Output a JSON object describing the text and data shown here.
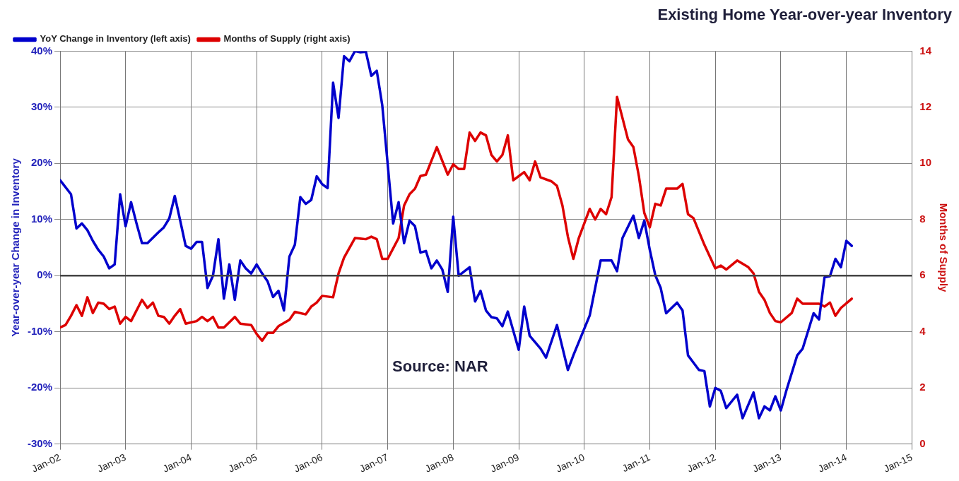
{
  "chart_data": {
    "type": "line",
    "title": "Existing Home Year-over-year Inventory",
    "ylabel": "Year-over-year Change in Inventory",
    "y2label": "Months of Supply",
    "annotations": [
      "Source: NAR"
    ],
    "legend": "top left",
    "grid": true,
    "marker": "none",
    "line_style": "solid",
    "xlim": [
      "2002-01",
      "2015-01"
    ],
    "xticks": [
      {
        "value": "2002-01",
        "label": "Jan-02"
      },
      {
        "value": "2003-01",
        "label": "Jan-03"
      },
      {
        "value": "2004-01",
        "label": "Jan-04"
      },
      {
        "value": "2005-01",
        "label": "Jan-05"
      },
      {
        "value": "2006-01",
        "label": "Jan-06"
      },
      {
        "value": "2007-01",
        "label": "Jan-07"
      },
      {
        "value": "2008-01",
        "label": "Jan-08"
      },
      {
        "value": "2009-01",
        "label": "Jan-09"
      },
      {
        "value": "2010-01",
        "label": "Jan-10"
      },
      {
        "value": "2011-01",
        "label": "Jan-11"
      },
      {
        "value": "2012-01",
        "label": "Jan-12"
      },
      {
        "value": "2013-01",
        "label": "Jan-13"
      },
      {
        "value": "2014-01",
        "label": "Jan-14"
      },
      {
        "value": "2015-01",
        "label": "Jan-15"
      }
    ],
    "ylim": [
      -30,
      40
    ],
    "yticks": [
      {
        "value": -30,
        "label": "-30%"
      },
      {
        "value": -20,
        "label": "-20%"
      },
      {
        "value": -10,
        "label": "-10%"
      },
      {
        "value": 0,
        "label": "0%"
      },
      {
        "value": 10,
        "label": "10%"
      },
      {
        "value": 20,
        "label": "20%"
      },
      {
        "value": 30,
        "label": "30%"
      },
      {
        "value": 40,
        "label": "40%"
      }
    ],
    "y2lim": [
      0,
      14
    ],
    "y2ticks": [
      0,
      2,
      4,
      6,
      8,
      10,
      12,
      14
    ],
    "ref_lines": [
      {
        "axis": "y",
        "value": 0,
        "color": "#444444"
      }
    ],
    "series": [
      {
        "name": "YoY Change in Inventory (left axis)",
        "color": "#0000cc",
        "x": [
          "2002-01",
          "2002-03",
          "2002-04",
          "2002-05",
          "2002-06",
          "2002-07",
          "2002-08",
          "2002-09",
          "2002-10",
          "2002-11",
          "2002-12",
          "2003-01",
          "2003-02",
          "2003-03",
          "2003-04",
          "2003-05",
          "2003-07",
          "2003-08",
          "2003-09",
          "2003-10",
          "2003-11",
          "2003-12",
          "2004-01",
          "2004-02",
          "2004-03",
          "2004-04",
          "2004-05",
          "2004-06",
          "2004-07",
          "2004-08",
          "2004-09",
          "2004-10",
          "2004-11",
          "2004-12",
          "2005-01",
          "2005-02",
          "2005-03",
          "2005-04",
          "2005-05",
          "2005-06",
          "2005-07",
          "2005-08",
          "2005-09",
          "2005-10",
          "2005-11",
          "2005-12",
          "2006-01",
          "2006-02",
          "2006-03",
          "2006-04",
          "2006-05",
          "2006-06",
          "2006-07",
          "2006-08",
          "2006-09",
          "2006-10",
          "2006-11",
          "2006-12",
          "2007-02",
          "2007-03",
          "2007-04",
          "2007-05",
          "2007-06",
          "2007-07",
          "2007-08",
          "2007-09",
          "2007-10",
          "2007-11",
          "2007-12",
          "2008-01",
          "2008-02",
          "2008-04",
          "2008-05",
          "2008-06",
          "2008-07",
          "2008-08",
          "2008-09",
          "2008-10",
          "2008-11",
          "2009-01",
          "2009-02",
          "2009-03",
          "2009-05",
          "2009-06",
          "2009-08",
          "2009-10",
          "2009-11",
          "2010-02",
          "2010-04",
          "2010-06",
          "2010-07",
          "2010-08",
          "2010-10",
          "2010-11",
          "2010-12",
          "2011-01",
          "2011-02",
          "2011-03",
          "2011-04",
          "2011-06",
          "2011-07",
          "2011-08",
          "2011-10",
          "2011-11",
          "2011-12",
          "2012-01",
          "2012-02",
          "2012-03",
          "2012-05",
          "2012-06",
          "2012-08",
          "2012-09",
          "2012-10",
          "2012-11",
          "2012-12",
          "2013-01",
          "2013-02",
          "2013-04",
          "2013-05",
          "2013-07",
          "2013-08",
          "2013-09",
          "2013-10",
          "2013-11",
          "2013-12",
          "2014-01",
          "2014-02"
        ],
        "values": [
          17,
          14.5,
          8.4,
          9.3,
          8.1,
          6.2,
          4.6,
          3.4,
          1.3,
          2,
          14.5,
          8.8,
          13.1,
          9.3,
          5.8,
          5.8,
          7.7,
          8.6,
          10.2,
          14.2,
          9.8,
          5.3,
          4.8,
          6,
          6,
          -2.2,
          0,
          6.5,
          -4.1,
          2,
          -4.3,
          2.7,
          1.3,
          0.4,
          2,
          0.4,
          -1,
          -3.8,
          -2.7,
          -6.2,
          3.4,
          5.5,
          14,
          12.8,
          13.5,
          17.7,
          16.3,
          15.6,
          34.4,
          28.1,
          39.1,
          38.2,
          40,
          39.8,
          39.9,
          35.6,
          36.5,
          30.4,
          9.3,
          13.1,
          5.8,
          9.8,
          8.8,
          4.1,
          4.4,
          1.3,
          2.7,
          1.1,
          -2.9,
          10.5,
          0,
          1.5,
          -4.6,
          -2.7,
          -6.2,
          -7.4,
          -7.6,
          -9,
          -6.4,
          -13.2,
          -5.5,
          -10.7,
          -13,
          -14.6,
          -8.8,
          -16.8,
          -14.2,
          -7.1,
          2.7,
          2.7,
          0.8,
          6.7,
          10.7,
          6.7,
          9.8,
          4.6,
          0.1,
          -2.2,
          -6.7,
          -4.8,
          -6.2,
          -14.2,
          -16.8,
          -17,
          -23.3,
          -20,
          -20.5,
          -23.6,
          -21.2,
          -25.4,
          -20.8,
          -25.4,
          -23.3,
          -24,
          -21.5,
          -24,
          -20.5,
          -14.2,
          -13,
          -6.7,
          -7.8,
          -0.3,
          -0.1,
          3,
          1.5,
          6.2,
          5.3
        ]
      },
      {
        "name": "Months of Supply (right axis)",
        "color": "#dd0000",
        "axis": "y2",
        "x": [
          "2002-01",
          "2002-02",
          "2002-03",
          "2002-04",
          "2002-05",
          "2002-06",
          "2002-07",
          "2002-08",
          "2002-09",
          "2002-10",
          "2002-11",
          "2002-12",
          "2003-01",
          "2003-02",
          "2003-04",
          "2003-05",
          "2003-06",
          "2003-07",
          "2003-08",
          "2003-09",
          "2003-10",
          "2003-11",
          "2003-12",
          "2004-02",
          "2004-03",
          "2004-04",
          "2004-05",
          "2004-06",
          "2004-07",
          "2004-09",
          "2004-10",
          "2004-12",
          "2005-01",
          "2005-02",
          "2005-03",
          "2005-04",
          "2005-05",
          "2005-07",
          "2005-08",
          "2005-10",
          "2005-11",
          "2005-12",
          "2006-01",
          "2006-03",
          "2006-04",
          "2006-05",
          "2006-07",
          "2006-09",
          "2006-10",
          "2006-11",
          "2006-12",
          "2007-01",
          "2007-03",
          "2007-04",
          "2007-05",
          "2007-06",
          "2007-07",
          "2007-08",
          "2007-10",
          "2007-12",
          "2008-01",
          "2008-02",
          "2008-03",
          "2008-04",
          "2008-05",
          "2008-06",
          "2008-07",
          "2008-08",
          "2008-09",
          "2008-10",
          "2008-11",
          "2008-12",
          "2009-02",
          "2009-03",
          "2009-04",
          "2009-05",
          "2009-07",
          "2009-08",
          "2009-09",
          "2009-10",
          "2009-11",
          "2009-12",
          "2010-01",
          "2010-02",
          "2010-03",
          "2010-04",
          "2010-05",
          "2010-06",
          "2010-07",
          "2010-09",
          "2010-10",
          "2010-11",
          "2010-12",
          "2011-01",
          "2011-02",
          "2011-03",
          "2011-04",
          "2011-06",
          "2011-07",
          "2011-08",
          "2011-09",
          "2011-11",
          "2012-01",
          "2012-02",
          "2012-03",
          "2012-05",
          "2012-07",
          "2012-08",
          "2012-09",
          "2012-10",
          "2012-11",
          "2012-12",
          "2013-01",
          "2013-03",
          "2013-04",
          "2013-05",
          "2013-08",
          "2013-09",
          "2013-10",
          "2013-11",
          "2013-12",
          "2014-02"
        ],
        "values": [
          4.15,
          4.24,
          4.57,
          4.95,
          4.57,
          5.23,
          4.67,
          5.04,
          5,
          4.81,
          4.9,
          4.29,
          4.53,
          4.38,
          5.14,
          4.85,
          5.04,
          4.57,
          4.53,
          4.29,
          4.57,
          4.81,
          4.29,
          4.38,
          4.53,
          4.38,
          4.53,
          4.15,
          4.15,
          4.53,
          4.29,
          4.24,
          3.92,
          3.68,
          3.96,
          3.96,
          4.2,
          4.43,
          4.71,
          4.62,
          4.9,
          5.04,
          5.28,
          5.23,
          6.08,
          6.64,
          7.34,
          7.3,
          7.39,
          7.3,
          6.6,
          6.6,
          7.34,
          8.5,
          8.9,
          9.1,
          9.55,
          9.6,
          10.58,
          9.6,
          9.97,
          9.8,
          9.8,
          11.1,
          10.8,
          11.1,
          11,
          10.3,
          10.07,
          10.3,
          11,
          9.4,
          9.69,
          9.4,
          10.07,
          9.5,
          9.36,
          9.2,
          8.5,
          7.39,
          6.6,
          7.34,
          7.86,
          8.38,
          8,
          8.38,
          8.19,
          8.8,
          12.37,
          10.86,
          10.58,
          9.55,
          8.23,
          7.72,
          8.56,
          8.5,
          9.1,
          9.1,
          9.27,
          8.19,
          8.05,
          7.1,
          6.26,
          6.36,
          6.22,
          6.54,
          6.31,
          6.08,
          5.42,
          5.14,
          4.67,
          4.38,
          4.34,
          4.67,
          5.18,
          5,
          5,
          4.9,
          5.04,
          4.57,
          4.85,
          5.18
        ]
      }
    ]
  }
}
